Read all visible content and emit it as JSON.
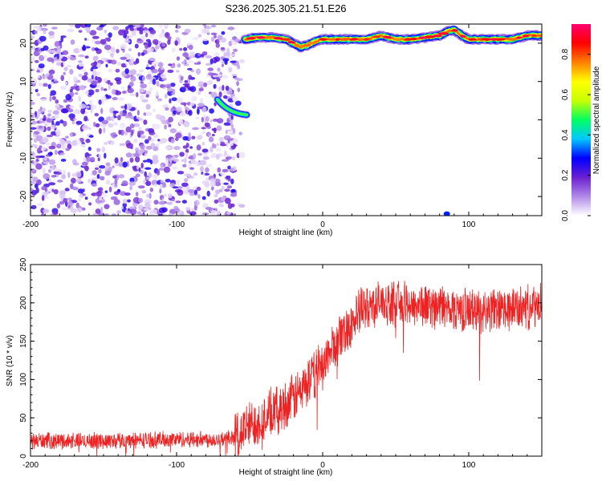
{
  "title": "S236.2025.305.21.51.E26",
  "chart_data": [
    {
      "type": "heatmap",
      "name": "spectrogram",
      "xlabel": "Height of straight line (km)",
      "ylabel": "Frequency (Hz)",
      "xlim": [
        -200,
        150
      ],
      "ylim": [
        -25,
        25
      ],
      "xticks": [
        -200,
        -100,
        0,
        100
      ],
      "xtick_labels": [
        "-200",
        "-100",
        "0",
        "100"
      ],
      "yticks": [
        -20,
        -10,
        0,
        10,
        20
      ],
      "ytick_labels": [
        "-20",
        "-10",
        "0",
        "10",
        "20"
      ],
      "noise_region_x": [
        -200,
        -60
      ],
      "noise_level": 0.25,
      "ridge": {
        "x": [
          -53,
          -45,
          -35,
          -25,
          -20,
          -15,
          -10,
          -5,
          0,
          10,
          20,
          30,
          40,
          50,
          60,
          70,
          80,
          85,
          90,
          95,
          100,
          110,
          120,
          130,
          140,
          150
        ],
        "freq": [
          21,
          21.5,
          21.5,
          21,
          20,
          19,
          19.5,
          20.5,
          21,
          21,
          21,
          21,
          22,
          21,
          21,
          21.5,
          22,
          23,
          23.5,
          22,
          21,
          21,
          21,
          21,
          22,
          22
        ],
        "amplitude": 0.85
      },
      "blob": {
        "x_range": [
          -72,
          -52
        ],
        "freq": 1.3,
        "amplitude": 0.5
      },
      "colorbar": {
        "label": "Normalized spectral amplitude",
        "ticks": [
          0.0,
          0.2,
          0.4,
          0.6,
          0.8
        ],
        "tick_labels": [
          "0.0",
          "0.2",
          "0.4",
          "0.6",
          "0.8"
        ],
        "range": [
          0,
          0.95
        ],
        "colors": [
          "#ffffff",
          "#b088e8",
          "#6a20d0",
          "#0000ff",
          "#00c8ff",
          "#00ff60",
          "#c8ff00",
          "#ffff00",
          "#ff8000",
          "#ff0000",
          "#ff0070"
        ]
      }
    },
    {
      "type": "line",
      "name": "snr",
      "xlabel": "Height of straight line (km)",
      "ylabel": "SNR (10 * v/v)",
      "xlim": [
        -200,
        150
      ],
      "ylim": [
        0,
        250
      ],
      "xticks": [
        -200,
        -100,
        0,
        100
      ],
      "xtick_labels": [
        "-200",
        "-100",
        "0",
        "100"
      ],
      "yticks": [
        0,
        50,
        100,
        150,
        200,
        250
      ],
      "ytick_labels": [
        "0",
        "50",
        "100",
        "150",
        "200",
        "250"
      ],
      "color": "#ee2222",
      "trend": {
        "x": [
          -200,
          -150,
          -100,
          -70,
          -60,
          -50,
          -40,
          -30,
          -20,
          -10,
          0,
          10,
          20,
          30,
          40,
          60,
          80,
          100,
          120,
          150
        ],
        "y": [
          20,
          20,
          22,
          22,
          25,
          40,
          50,
          60,
          75,
          95,
          120,
          150,
          175,
          195,
          200,
          198,
          195,
          190,
          190,
          195
        ]
      },
      "noise_amplitude": [
        12,
        40
      ]
    }
  ]
}
